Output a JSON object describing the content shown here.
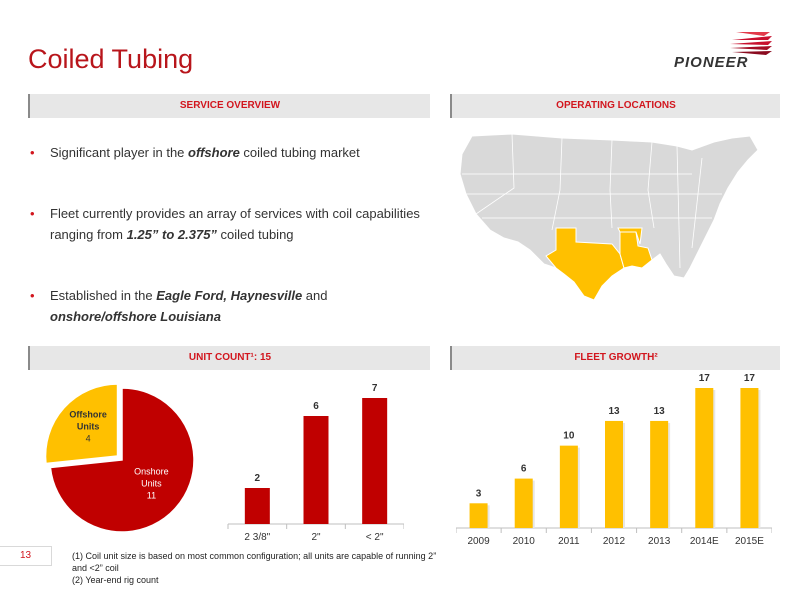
{
  "page": {
    "title": "Coiled Tubing",
    "logo_text": "PIONEER",
    "page_number": "13"
  },
  "sections": {
    "service_overview": "SERVICE OVERVIEW",
    "operating_locations": "OPERATING LOCATIONS",
    "unit_count": "UNIT COUNT¹: 15",
    "fleet_growth": "FLEET GROWTH²"
  },
  "bullets": [
    {
      "parts": [
        [
          "Significant player in the ",
          ""
        ],
        [
          "offshore",
          "bi"
        ],
        [
          " coiled tubing market",
          ""
        ]
      ]
    },
    {
      "parts": [
        [
          "Fleet currently provides an array of services with coil capabilities ranging from ",
          ""
        ],
        [
          "1.25” to 2.375”",
          "bi"
        ],
        [
          " coiled tubing",
          ""
        ]
      ]
    },
    {
      "parts": [
        [
          "Established in the ",
          ""
        ],
        [
          "Eagle Ford, Haynesville",
          "bi"
        ],
        [
          " and ",
          ""
        ],
        [
          "onshore/offshore Louisiana",
          "bi"
        ]
      ]
    }
  ],
  "footnotes": {
    "line1": "(1) Coil unit size is based on most common configuration; all units are capable of running 2” and <2” coil",
    "line2": "(2) Year-end rig count"
  },
  "colors": {
    "red": "#c00000",
    "gold": "#ffc000",
    "accent": "#d2161e",
    "map_fill": "#d9d9d9",
    "map_highlight": "#ffc000"
  },
  "chart_data": [
    {
      "type": "pie",
      "labels": [
        "Offshore Units",
        "Onshore Units"
      ],
      "values": [
        4,
        11
      ],
      "colors": [
        "#ffc000",
        "#c00000"
      ]
    },
    {
      "type": "bar",
      "categories": [
        "2 3/8\"",
        "2\"",
        "< 2\""
      ],
      "values": [
        2,
        6,
        7
      ],
      "color": "#c00000"
    },
    {
      "type": "bar",
      "categories": [
        "2009",
        "2010",
        "2011",
        "2012",
        "2013",
        "2014E",
        "2015E"
      ],
      "values": [
        3,
        6,
        10,
        13,
        13,
        17,
        17
      ],
      "color": "#ffc000"
    }
  ]
}
